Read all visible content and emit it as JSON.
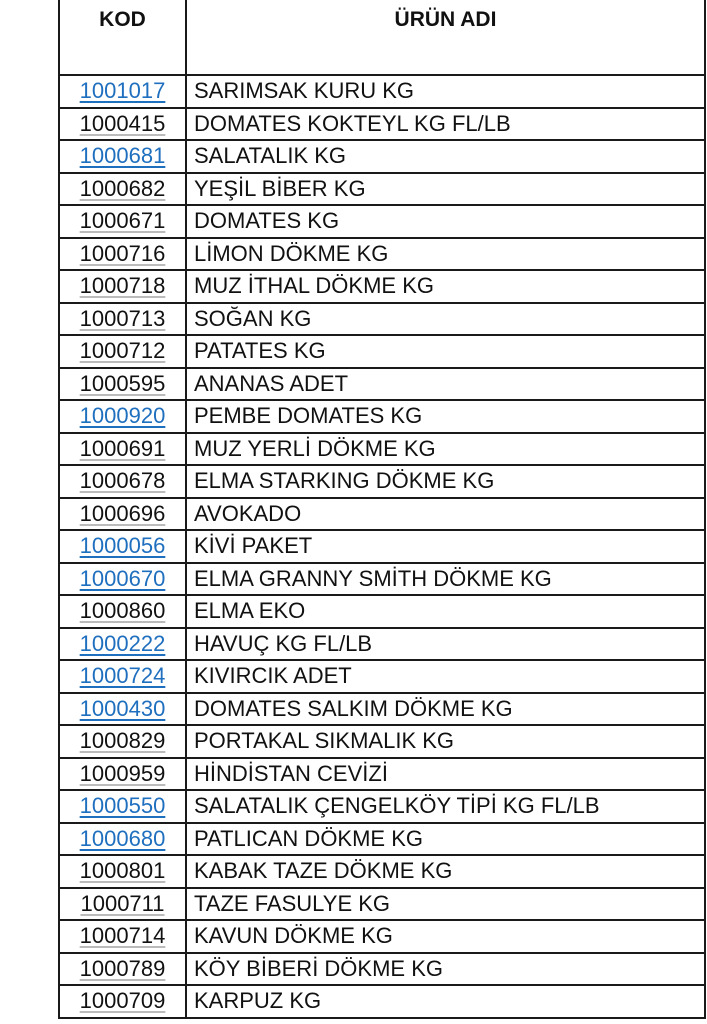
{
  "header": {
    "code": "KOD",
    "name": "ÜRÜN ADI"
  },
  "colors": {
    "link": "#1f6fbf"
  },
  "rows": [
    {
      "code": "1001017",
      "name": "SARIMSAK KURU KG",
      "link": true
    },
    {
      "code": "1000415",
      "name": "DOMATES KOKTEYL KG FL/LB",
      "link": false
    },
    {
      "code": "1000681",
      "name": "SALATALIK KG",
      "link": true
    },
    {
      "code": "1000682",
      "name": "YEŞİL BİBER KG",
      "link": false
    },
    {
      "code": "1000671",
      "name": "DOMATES KG",
      "link": false
    },
    {
      "code": "1000716",
      "name": "LİMON DÖKME KG",
      "link": false
    },
    {
      "code": "1000718",
      "name": "MUZ İTHAL DÖKME KG",
      "link": false
    },
    {
      "code": "1000713",
      "name": "SOĞAN KG",
      "link": false
    },
    {
      "code": "1000712",
      "name": "PATATES KG",
      "link": false
    },
    {
      "code": "1000595",
      "name": "ANANAS ADET",
      "link": false
    },
    {
      "code": "1000920",
      "name": "PEMBE DOMATES KG",
      "link": true
    },
    {
      "code": "1000691",
      "name": "MUZ YERLİ DÖKME KG",
      "link": false
    },
    {
      "code": "1000678",
      "name": "ELMA STARKING DÖKME KG",
      "link": false
    },
    {
      "code": "1000696",
      "name": "AVOKADO",
      "link": false
    },
    {
      "code": "1000056",
      "name": "KİVİ PAKET",
      "link": true
    },
    {
      "code": "1000670",
      "name": "ELMA GRANNY SMİTH DÖKME KG",
      "link": true
    },
    {
      "code": "1000860",
      "name": "ELMA EKO",
      "link": false
    },
    {
      "code": "1000222",
      "name": "HAVUÇ KG FL/LB",
      "link": true
    },
    {
      "code": "1000724",
      "name": "KIVIRCIK ADET",
      "link": true
    },
    {
      "code": "1000430",
      "name": "DOMATES SALKIM DÖKME KG",
      "link": true
    },
    {
      "code": "1000829",
      "name": "PORTAKAL SIKMALIK KG",
      "link": false
    },
    {
      "code": "1000959",
      "name": "HİNDİSTAN CEVİZİ",
      "link": false
    },
    {
      "code": "1000550",
      "name": "SALATALIK ÇENGELKÖY TİPİ KG FL/LB",
      "link": true
    },
    {
      "code": "1000680",
      "name": "PATLICAN DÖKME KG",
      "link": true
    },
    {
      "code": "1000801",
      "name": "KABAK TAZE DÖKME KG",
      "link": false
    },
    {
      "code": "1000711",
      "name": "TAZE FASULYE KG",
      "link": false
    },
    {
      "code": "1000714",
      "name": "KAVUN DÖKME KG",
      "link": false
    },
    {
      "code": "1000789",
      "name": "KÖY BİBERİ DÖKME KG",
      "link": false
    },
    {
      "code": "1000709",
      "name": "KARPUZ KG",
      "link": false
    }
  ]
}
